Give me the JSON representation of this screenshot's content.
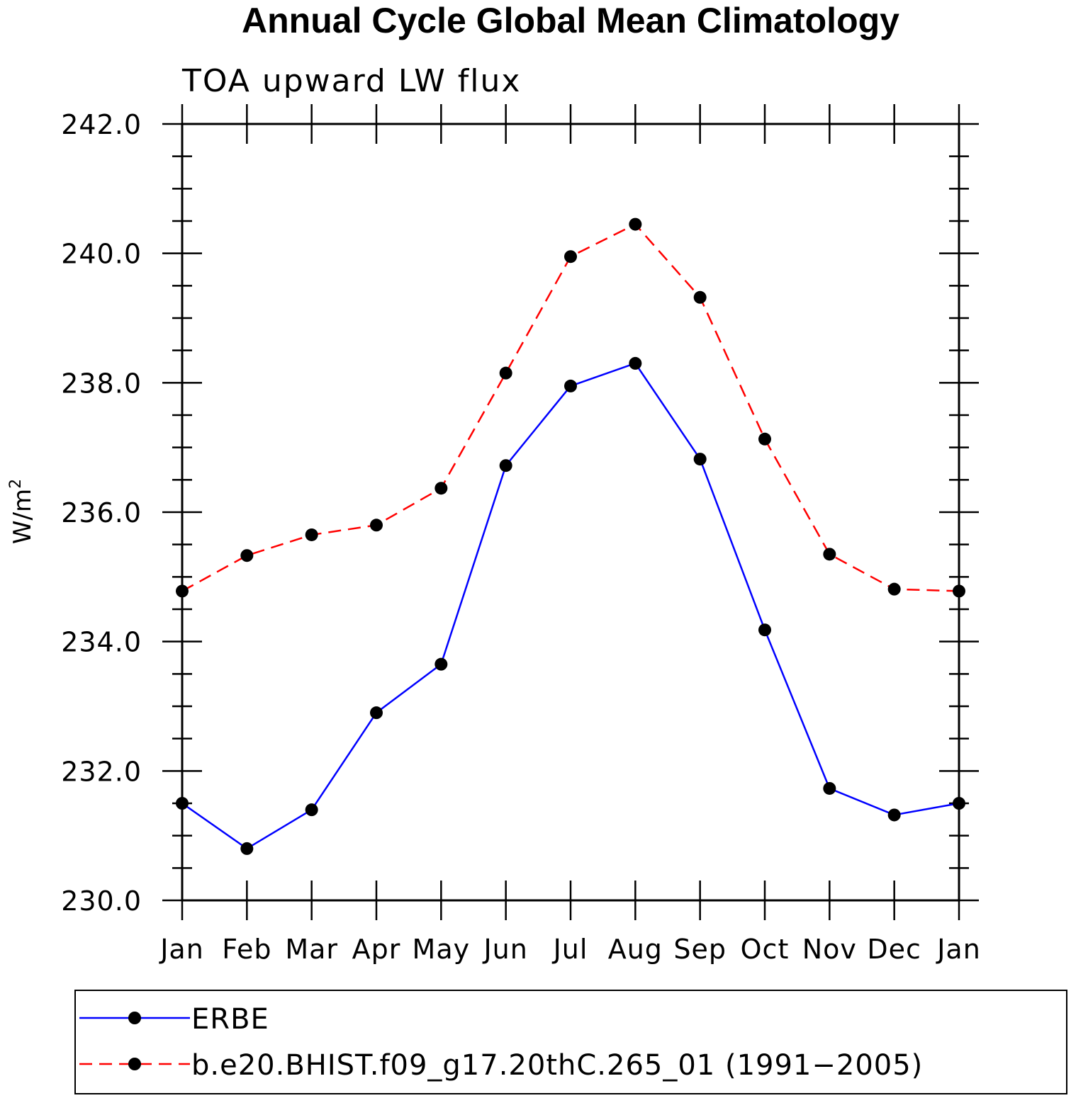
{
  "chart_data": {
    "type": "line",
    "title": "Annual Cycle Global Mean Climatology",
    "subtitle": "TOA upward LW flux",
    "ylabel": "W/m",
    "ylabel_superscript": "2",
    "xlabel": "",
    "categories": [
      "Jan",
      "Feb",
      "Mar",
      "Apr",
      "May",
      "Jun",
      "Jul",
      "Aug",
      "Sep",
      "Oct",
      "Nov",
      "Dec",
      "Jan"
    ],
    "ylim": [
      230.0,
      242.0
    ],
    "yticks_major": [
      230.0,
      232.0,
      234.0,
      236.0,
      238.0,
      240.0,
      242.0
    ],
    "ytick_labels": [
      "230.0",
      "232.0",
      "234.0",
      "236.0",
      "238.0",
      "240.0",
      "242.0"
    ],
    "yminor_step": 0.5,
    "grid": false,
    "legend_position": "bottom",
    "series": [
      {
        "name": "ERBE",
        "color": "#0000ff",
        "line_style": "solid",
        "marker": "filled-circle",
        "values": [
          231.5,
          230.8,
          231.4,
          232.9,
          233.65,
          236.72,
          237.95,
          238.3,
          236.82,
          234.18,
          231.73,
          231.32,
          231.5
        ]
      },
      {
        "name": "b.e20.BHIST.f09_g17.20thC.265_01 (1991−2005)",
        "color": "#ff0000",
        "line_style": "dashed",
        "marker": "filled-circle",
        "values": [
          234.78,
          235.33,
          235.65,
          235.8,
          236.37,
          238.15,
          239.95,
          240.45,
          239.32,
          237.13,
          235.35,
          234.81,
          234.78
        ]
      }
    ]
  }
}
